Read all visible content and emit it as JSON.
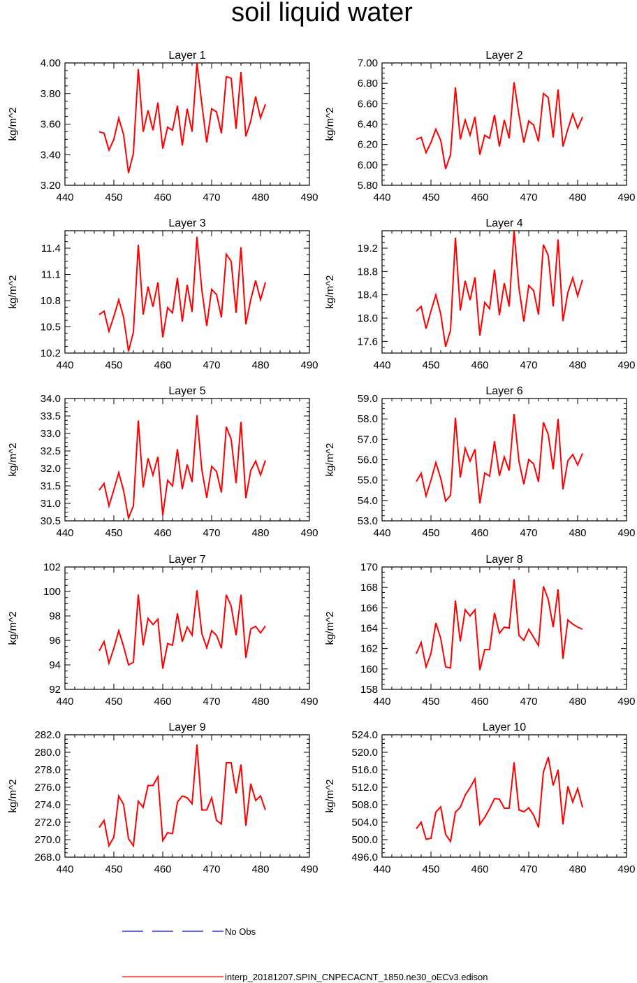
{
  "chart_data": {
    "type": "line",
    "title": "soil liquid water",
    "x_ticks": [
      440,
      450,
      460,
      470,
      480,
      490
    ],
    "xlim": [
      440,
      490
    ],
    "x": [
      447,
      448,
      449,
      450,
      451,
      452,
      453,
      454,
      455,
      456,
      457,
      458,
      459,
      460,
      461,
      462,
      463,
      464,
      465,
      466,
      467,
      468,
      469,
      470,
      471,
      472,
      473,
      474,
      475,
      476,
      477,
      478,
      479,
      480,
      481
    ],
    "series_name": "interp_20181207.SPIN_CNPECACNT_1850.ne30_oECv3.edison",
    "series_color": "#ff0000",
    "legend": [
      {
        "label": "No Obs",
        "color": "#0000ff",
        "style": "dashed"
      },
      {
        "label": "interp_20181207.SPIN_CNPECACNT_1850.ne30_oECv3.edison",
        "color": "#ff0000",
        "style": "solid"
      }
    ],
    "panels": [
      {
        "title": "Layer 1",
        "ylabel": "kg/m^2",
        "ylim": [
          3.2,
          4.0
        ],
        "y_ticks": [
          "3.20",
          "3.40",
          "3.60",
          "3.80",
          "4.00"
        ],
        "values": [
          3.55,
          3.54,
          3.43,
          3.5,
          3.64,
          3.53,
          3.28,
          3.41,
          3.96,
          3.55,
          3.69,
          3.56,
          3.74,
          3.44,
          3.58,
          3.56,
          3.72,
          3.46,
          3.7,
          3.55,
          4.0,
          3.73,
          3.48,
          3.7,
          3.68,
          3.54,
          3.91,
          3.9,
          3.57,
          3.94,
          3.52,
          3.62,
          3.78,
          3.64,
          3.73
        ]
      },
      {
        "title": "Layer 2",
        "ylabel": "kg/m^2",
        "ylim": [
          5.8,
          7.0
        ],
        "y_ticks": [
          "5.80",
          "6.00",
          "6.20",
          "6.40",
          "6.60",
          "6.80",
          "7.00"
        ],
        "values": [
          6.25,
          6.27,
          6.12,
          6.22,
          6.35,
          6.24,
          5.96,
          6.1,
          6.76,
          6.25,
          6.44,
          6.29,
          6.47,
          6.1,
          6.29,
          6.26,
          6.49,
          6.18,
          6.44,
          6.26,
          6.81,
          6.49,
          6.22,
          6.43,
          6.39,
          6.23,
          6.7,
          6.66,
          6.27,
          6.74,
          6.18,
          6.35,
          6.5,
          6.36,
          6.47
        ]
      },
      {
        "title": "Layer 3",
        "ylabel": "kg/m^2",
        "ylim": [
          10.2,
          11.6
        ],
        "y_ticks": [
          "10.2",
          "10.5",
          "10.8",
          "11.1",
          "11.4"
        ],
        "values": [
          10.64,
          10.68,
          10.45,
          10.62,
          10.81,
          10.61,
          10.22,
          10.44,
          11.44,
          10.64,
          10.96,
          10.73,
          11.01,
          10.38,
          10.72,
          10.66,
          11.06,
          10.56,
          10.98,
          10.67,
          11.53,
          10.92,
          10.51,
          10.93,
          10.87,
          10.61,
          11.33,
          11.25,
          10.66,
          11.41,
          10.53,
          10.81,
          11.03,
          10.81,
          11.01
        ]
      },
      {
        "title": "Layer 4",
        "ylabel": "kg/m^2",
        "ylim": [
          17.4,
          19.5
        ],
        "y_ticks": [
          "17.6",
          "18.0",
          "18.4",
          "18.8",
          "19.2"
        ],
        "values": [
          18.12,
          18.2,
          17.82,
          18.12,
          18.4,
          18.07,
          17.51,
          17.79,
          19.38,
          18.13,
          18.64,
          18.31,
          18.7,
          17.7,
          18.27,
          18.16,
          18.83,
          18.05,
          18.6,
          18.2,
          19.5,
          18.52,
          17.94,
          18.56,
          18.47,
          18.06,
          19.26,
          19.07,
          18.2,
          19.35,
          17.95,
          18.44,
          18.69,
          18.38,
          18.66
        ]
      },
      {
        "title": "Layer 5",
        "ylabel": "kg/m^2",
        "ylim": [
          30.5,
          34.0
        ],
        "y_ticks": [
          "30.5",
          "31.0",
          "31.5",
          "32.0",
          "32.5",
          "33.0",
          "33.5",
          "34.0"
        ],
        "values": [
          31.38,
          31.57,
          30.93,
          31.39,
          31.88,
          31.36,
          30.58,
          30.93,
          33.37,
          31.46,
          32.29,
          31.81,
          32.33,
          30.66,
          31.66,
          31.5,
          32.55,
          31.41,
          32.11,
          31.61,
          33.52,
          31.96,
          31.16,
          32.06,
          31.91,
          31.31,
          33.19,
          32.83,
          31.58,
          33.33,
          31.15,
          31.94,
          32.21,
          31.81,
          32.23
        ]
      },
      {
        "title": "Layer 6",
        "ylabel": "kg/m^2",
        "ylim": [
          53.0,
          59.0
        ],
        "y_ticks": [
          "53.0",
          "54.0",
          "55.0",
          "56.0",
          "57.0",
          "58.0",
          "59.0"
        ],
        "values": [
          54.93,
          55.33,
          54.22,
          54.99,
          55.86,
          55.08,
          53.97,
          54.25,
          58.05,
          55.13,
          56.56,
          55.93,
          56.51,
          53.85,
          55.35,
          55.19,
          56.9,
          55.21,
          56.13,
          55.46,
          58.24,
          55.92,
          54.8,
          56.01,
          55.79,
          54.91,
          57.83,
          57.23,
          55.53,
          58.0,
          54.55,
          55.95,
          56.25,
          55.74,
          56.31
        ]
      },
      {
        "title": "Layer 7",
        "ylabel": "kg/m^2",
        "ylim": [
          92,
          102
        ],
        "y_ticks": [
          "92",
          "94",
          "96",
          "98",
          "100",
          "102"
        ],
        "values": [
          95.15,
          95.9,
          94.15,
          95.36,
          96.79,
          95.5,
          94.0,
          94.21,
          99.75,
          95.6,
          97.8,
          97.3,
          97.74,
          93.7,
          95.75,
          95.6,
          98.21,
          95.9,
          97.09,
          96.43,
          100.1,
          96.55,
          95.4,
          96.8,
          96.41,
          95.36,
          99.72,
          98.8,
          96.42,
          99.73,
          94.58,
          96.93,
          97.15,
          96.61,
          97.19
        ]
      },
      {
        "title": "Layer 8",
        "ylabel": "kg/m^2",
        "ylim": [
          158,
          170
        ],
        "y_ticks": [
          "158",
          "160",
          "162",
          "164",
          "166",
          "168",
          "170"
        ],
        "values": [
          161.5,
          162.6,
          160.2,
          161.5,
          164.5,
          163.0,
          160.2,
          160.1,
          166.7,
          162.7,
          165.8,
          165.2,
          165.8,
          159.9,
          161.9,
          161.9,
          165.5,
          163.5,
          164.1,
          164.0,
          168.8,
          163.3,
          162.8,
          163.9,
          163.1,
          162.3,
          168.1,
          166.8,
          164.1,
          167.8,
          161.0,
          164.8,
          164.4,
          164.1,
          163.9
        ]
      },
      {
        "title": "Layer 9",
        "ylabel": "kg/m^2",
        "ylim": [
          268.0,
          282.0
        ],
        "y_ticks": [
          "268.0",
          "270.0",
          "272.0",
          "274.0",
          "276.0",
          "278.0",
          "280.0",
          "282.0"
        ],
        "values": [
          271.4,
          272.2,
          269.3,
          270.3,
          275.0,
          274.0,
          270.1,
          269.3,
          274.4,
          273.7,
          276.2,
          276.2,
          277.2,
          269.9,
          270.8,
          270.7,
          274.3,
          275.0,
          274.8,
          274.1,
          280.9,
          273.4,
          273.4,
          274.8,
          272.2,
          271.8,
          278.8,
          278.8,
          275.3,
          278.6,
          271.6,
          276.4,
          274.5,
          275.0,
          273.4
        ]
      },
      {
        "title": "Layer 10",
        "ylabel": "kg/m^2",
        "ylim": [
          496.0,
          524.0
        ],
        "y_ticks": [
          "496.0",
          "500.0",
          "504.0",
          "508.0",
          "512.0",
          "516.0",
          "520.0",
          "524.0"
        ],
        "values": [
          502.5,
          504.0,
          500.1,
          500.3,
          506.3,
          507.5,
          501.2,
          499.6,
          506.3,
          507.4,
          510.2,
          511.9,
          513.9,
          503.5,
          505.1,
          507.1,
          509.4,
          509.3,
          507.2,
          507.2,
          517.7,
          506.8,
          506.4,
          507.3,
          505.6,
          502.8,
          515.5,
          518.9,
          512.4,
          516.0,
          503.5,
          512.2,
          508.6,
          511.7,
          507.4
        ]
      }
    ]
  }
}
